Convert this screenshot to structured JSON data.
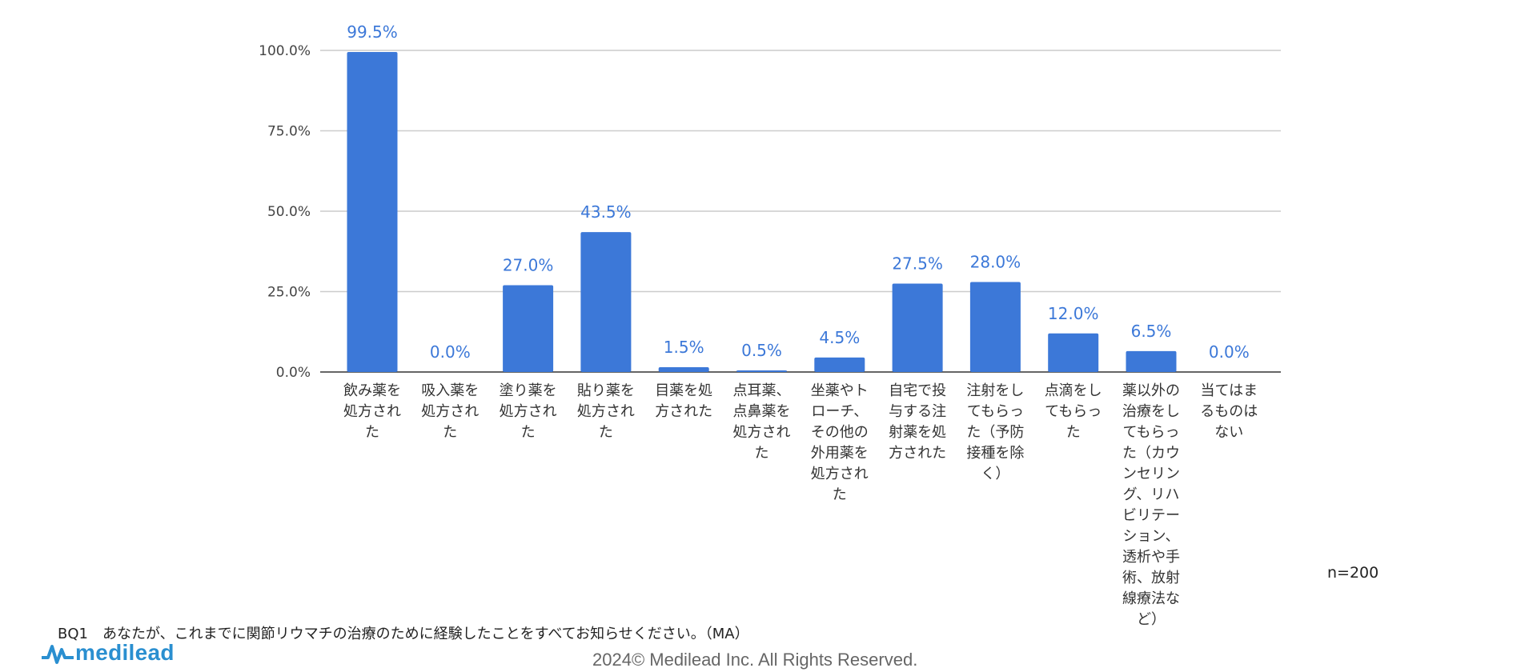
{
  "chart_data": {
    "type": "bar",
    "categories": [
      "飲み薬を処方された",
      "吸入薬を処方された",
      "塗り薬を処方された",
      "貼り薬を処方された",
      "目薬を処方された",
      "点耳薬、点鼻薬を処方された",
      "坐薬やトローチ、その他の外用薬を処方された",
      "自宅で投与する注射薬を処方された",
      "注射をしてもらった（予防接種を除く）",
      "点滴をしてもらった",
      "薬以外の治療をしてもらった（カウンセリング、リハビリテーション、透析や手術、放射線療法など）",
      "当てはまるものはない"
    ],
    "category_lines": [
      [
        "飲み薬を",
        "処方され",
        "た"
      ],
      [
        "吸入薬を",
        "処方され",
        "た"
      ],
      [
        "塗り薬を",
        "処方され",
        "た"
      ],
      [
        "貼り薬を",
        "処方され",
        "た"
      ],
      [
        "目薬を処",
        "方された"
      ],
      [
        "点耳薬、",
        "点鼻薬を",
        "処方され",
        "た"
      ],
      [
        "坐薬やト",
        "ローチ、",
        "その他の",
        "外用薬を",
        "処方され",
        "た"
      ],
      [
        "自宅で投",
        "与する注",
        "射薬を処",
        "方された"
      ],
      [
        "注射をし",
        "てもらっ",
        "た（予防",
        "接種を除",
        "く）"
      ],
      [
        "点滴をし",
        "てもらっ",
        "た"
      ],
      [
        "薬以外の",
        "治療をし",
        "てもらっ",
        "た（カウ",
        "ンセリン",
        "グ、リハ",
        "ビリテー",
        "ション、",
        "透析や手",
        "術、放射",
        "線療法な",
        "ど）"
      ],
      [
        "当てはま",
        "るものは",
        "ない"
      ]
    ],
    "values": [
      99.5,
      0.0,
      27.0,
      43.5,
      1.5,
      0.5,
      4.5,
      27.5,
      28.0,
      12.0,
      6.5,
      0.0
    ],
    "value_labels": [
      "99.5%",
      "0.0%",
      "27.0%",
      "43.5%",
      "1.5%",
      "0.5%",
      "4.5%",
      "27.5%",
      "28.0%",
      "12.0%",
      "6.5%",
      "0.0%"
    ],
    "ylim": [
      0,
      100
    ],
    "yticks": [
      0,
      25,
      50,
      75,
      100
    ],
    "ytick_labels": [
      "0.0%",
      "25.0%",
      "50.0%",
      "75.0%",
      "100.0%"
    ],
    "grid": true,
    "bar_color": "#3c78d8",
    "value_label_color": "#3c78d8"
  },
  "sample_size": "n=200",
  "question": "BQ1　あなたが、これまでに関節リウマチの治療のために経験したことをすべてお知らせください。（MA）",
  "logo": {
    "text": "medilead",
    "icon": "pulse-wave-icon",
    "color": "#2a8fd0"
  },
  "copyright": "2024© Medilead Inc. All Rights Reserved."
}
